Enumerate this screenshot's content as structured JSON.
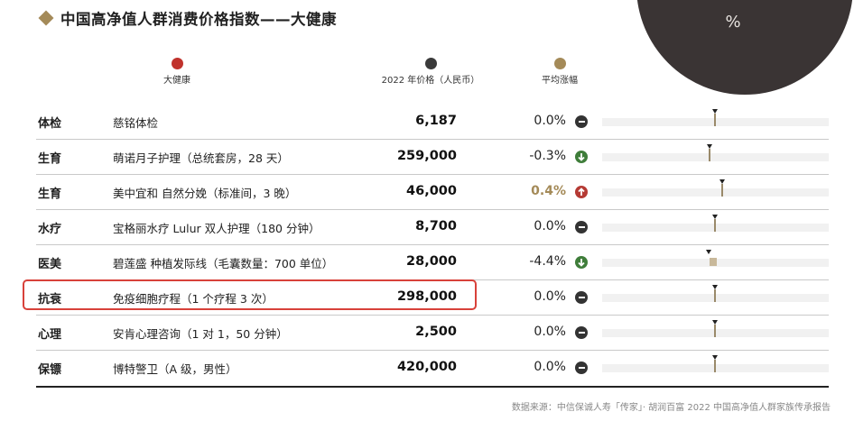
{
  "corner": {
    "symbol": "%"
  },
  "title": "中国高净值人群消费价格指数——大健康",
  "legend": [
    {
      "label": "大健康",
      "color": "#c0322c"
    },
    {
      "label": "2022 年价格（人民币）",
      "color": "#3a3a3a"
    },
    {
      "label": "平均涨幅",
      "color": "#a48a58"
    }
  ],
  "rows": [
    {
      "category": "体检",
      "item": "慈铭体检",
      "price": "6,187",
      "change": "0.0%",
      "trend": "flat",
      "change_value": 0.0
    },
    {
      "category": "生育",
      "item": "萌诺月子护理（总统套房，28 天）",
      "price": "259,000",
      "change": "-0.3%",
      "trend": "down",
      "change_value": -0.3
    },
    {
      "category": "生育",
      "item": "美中宜和 自然分娩（标准间，3 晚）",
      "price": "46,000",
      "change": "0.4%",
      "trend": "up",
      "change_value": 0.4
    },
    {
      "category": "水疗",
      "item": "宝格丽水疗 Lulur 双人护理（180 分钟）",
      "price": "8,700",
      "change": "0.0%",
      "trend": "flat",
      "change_value": 0.0
    },
    {
      "category": "医美",
      "item": "碧莲盛 种植发际线（毛囊数量：700 单位）",
      "price": "28,000",
      "change": "-4.4%",
      "trend": "down",
      "change_value": -4.4
    },
    {
      "category": "抗衰",
      "item": "免疫细胞疗程（1 个疗程 3 次）",
      "price": "298,000",
      "change": "0.0%",
      "trend": "flat",
      "change_value": 0.0
    },
    {
      "category": "心理",
      "item": "安肯心理咨询（1 对 1，50 分钟）",
      "price": "2,500",
      "change": "0.0%",
      "trend": "flat",
      "change_value": 0.0
    },
    {
      "category": "保镖",
      "item": "博特警卫（A 级，男性）",
      "price": "420,000",
      "change": "0.0%",
      "trend": "flat",
      "change_value": 0.0
    }
  ],
  "highlighted_row": 5,
  "source": "数据来源：中信保诚人寿「传家」· 胡润百富 2022 中国高净值人群家族传承报告"
}
